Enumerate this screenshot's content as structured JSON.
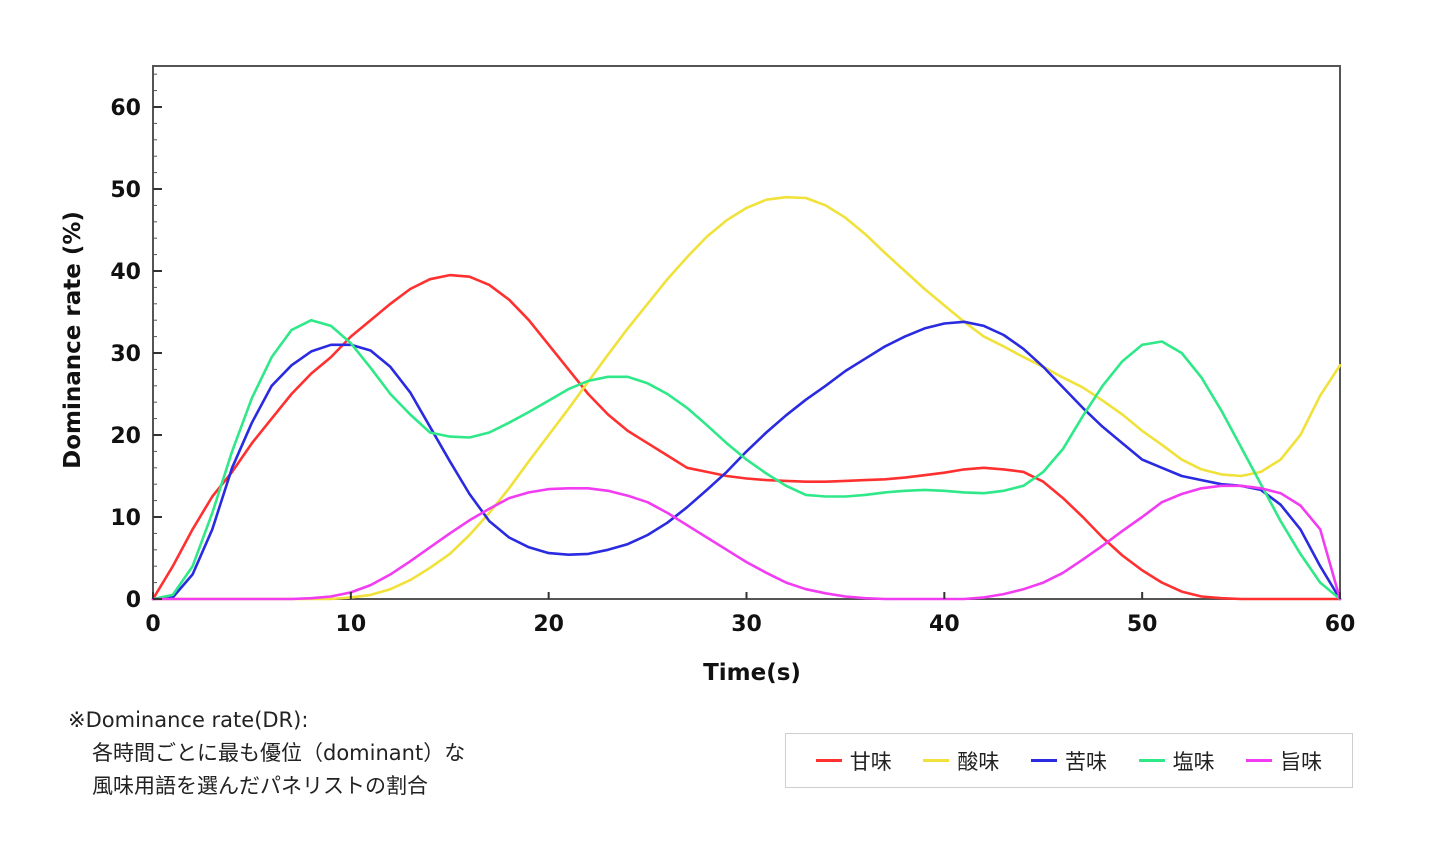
{
  "chart_data": {
    "type": "line",
    "xlabel": "Time(s)",
    "ylabel": "Dominance rate (%)",
    "xlim": [
      0,
      60
    ],
    "ylim": [
      0,
      65
    ],
    "x_ticks": [
      0,
      10,
      20,
      30,
      40,
      50,
      60
    ],
    "y_ticks": [
      0,
      10,
      20,
      30,
      40,
      50,
      60
    ],
    "grid": false,
    "legend_position": "bottom-right",
    "x": [
      0,
      1,
      2,
      3,
      4,
      5,
      6,
      7,
      8,
      9,
      10,
      11,
      12,
      13,
      14,
      15,
      16,
      17,
      18,
      19,
      20,
      21,
      22,
      23,
      24,
      25,
      26,
      27,
      28,
      29,
      30,
      31,
      32,
      33,
      34,
      35,
      36,
      37,
      38,
      39,
      40,
      41,
      42,
      43,
      44,
      45,
      46,
      47,
      48,
      49,
      50,
      51,
      52,
      53,
      54,
      55,
      56,
      57,
      58,
      59,
      60
    ],
    "series": [
      {
        "name": "甘味",
        "color": "#ff3030",
        "values": [
          0,
          4,
          8.5,
          12.5,
          15.5,
          19,
          22,
          25,
          27.5,
          29.5,
          32,
          34,
          36,
          37.8,
          39,
          39.5,
          39.3,
          38.3,
          36.5,
          34,
          31,
          28,
          25,
          22.5,
          20.5,
          19,
          17.5,
          16,
          15.5,
          15,
          14.7,
          14.5,
          14.4,
          14.3,
          14.3,
          14.4,
          14.5,
          14.6,
          14.8,
          15.1,
          15.4,
          15.8,
          16,
          15.8,
          15.5,
          14.3,
          12.3,
          10,
          7.5,
          5.3,
          3.5,
          2,
          0.9,
          0.3,
          0.1,
          0,
          0,
          0,
          0,
          0,
          0
        ]
      },
      {
        "name": "酸味",
        "color": "#f0e23a",
        "values": [
          0,
          0,
          0,
          0,
          0,
          0,
          0,
          0,
          0,
          0,
          0.2,
          0.5,
          1.2,
          2.3,
          3.8,
          5.5,
          7.8,
          10.5,
          13.5,
          16.8,
          20,
          23.2,
          26.5,
          29.8,
          33,
          36,
          39,
          41.7,
          44.2,
          46.2,
          47.7,
          48.7,
          49,
          48.9,
          48,
          46.5,
          44.5,
          42.2,
          40,
          37.8,
          35.8,
          33.8,
          32,
          30.8,
          29.5,
          28.3,
          27,
          25.8,
          24.2,
          22.5,
          20.5,
          18.8,
          17,
          15.8,
          15.2,
          15,
          15.5,
          17,
          20,
          24.8,
          28.5
        ]
      },
      {
        "name": "苦味",
        "color": "#2a2ae0",
        "values": [
          0,
          0.2,
          3,
          8.5,
          16,
          21.5,
          26,
          28.5,
          30.2,
          31,
          31,
          30.3,
          28.3,
          25.2,
          21,
          16.8,
          12.8,
          9.5,
          7.5,
          6.3,
          5.6,
          5.4,
          5.5,
          6,
          6.7,
          7.8,
          9.3,
          11.2,
          13.3,
          15.5,
          18,
          20.3,
          22.4,
          24.3,
          26,
          27.8,
          29.3,
          30.8,
          32,
          33,
          33.6,
          33.8,
          33.3,
          32.2,
          30.5,
          28.3,
          25.8,
          23.3,
          21,
          19,
          17,
          16,
          15,
          14.5,
          14,
          13.8,
          13.3,
          11.5,
          8.5,
          4,
          0
        ]
      },
      {
        "name": "塩味",
        "color": "#2fe888",
        "values": [
          0,
          0.5,
          4,
          10.5,
          18,
          24.5,
          29.5,
          32.8,
          34,
          33.3,
          31.2,
          28.2,
          25,
          22.5,
          20.3,
          19.8,
          19.7,
          20.3,
          21.5,
          22.8,
          24.2,
          25.6,
          26.6,
          27.1,
          27.1,
          26.3,
          25,
          23.3,
          21.2,
          19,
          17,
          15.3,
          13.8,
          12.7,
          12.5,
          12.5,
          12.7,
          13,
          13.2,
          13.3,
          13.2,
          13,
          12.9,
          13.2,
          13.8,
          15.5,
          18.3,
          22.3,
          26,
          29,
          31,
          31.4,
          30,
          27,
          23,
          18.5,
          14,
          9.5,
          5.5,
          2,
          0
        ]
      },
      {
        "name": "旨味",
        "color": "#f23cf2",
        "values": [
          0,
          0,
          0,
          0,
          0,
          0,
          0,
          0,
          0.1,
          0.3,
          0.8,
          1.7,
          3,
          4.6,
          6.3,
          8,
          9.6,
          11,
          12.3,
          13,
          13.4,
          13.5,
          13.5,
          13.2,
          12.6,
          11.8,
          10.5,
          9,
          7.5,
          6,
          4.5,
          3.2,
          2,
          1.2,
          0.7,
          0.3,
          0.1,
          0,
          0,
          0,
          0,
          0,
          0.2,
          0.6,
          1.2,
          2,
          3.2,
          4.8,
          6.5,
          8.3,
          10,
          11.8,
          12.8,
          13.5,
          13.8,
          13.8,
          13.5,
          12.9,
          11.4,
          8.5,
          0
        ]
      }
    ]
  },
  "note": {
    "line1": "※Dominance rate(DR):",
    "line2": "各時間ごとに最も優位（dominant）な",
    "line3": "風味用語を選んだパネリストの割合"
  }
}
